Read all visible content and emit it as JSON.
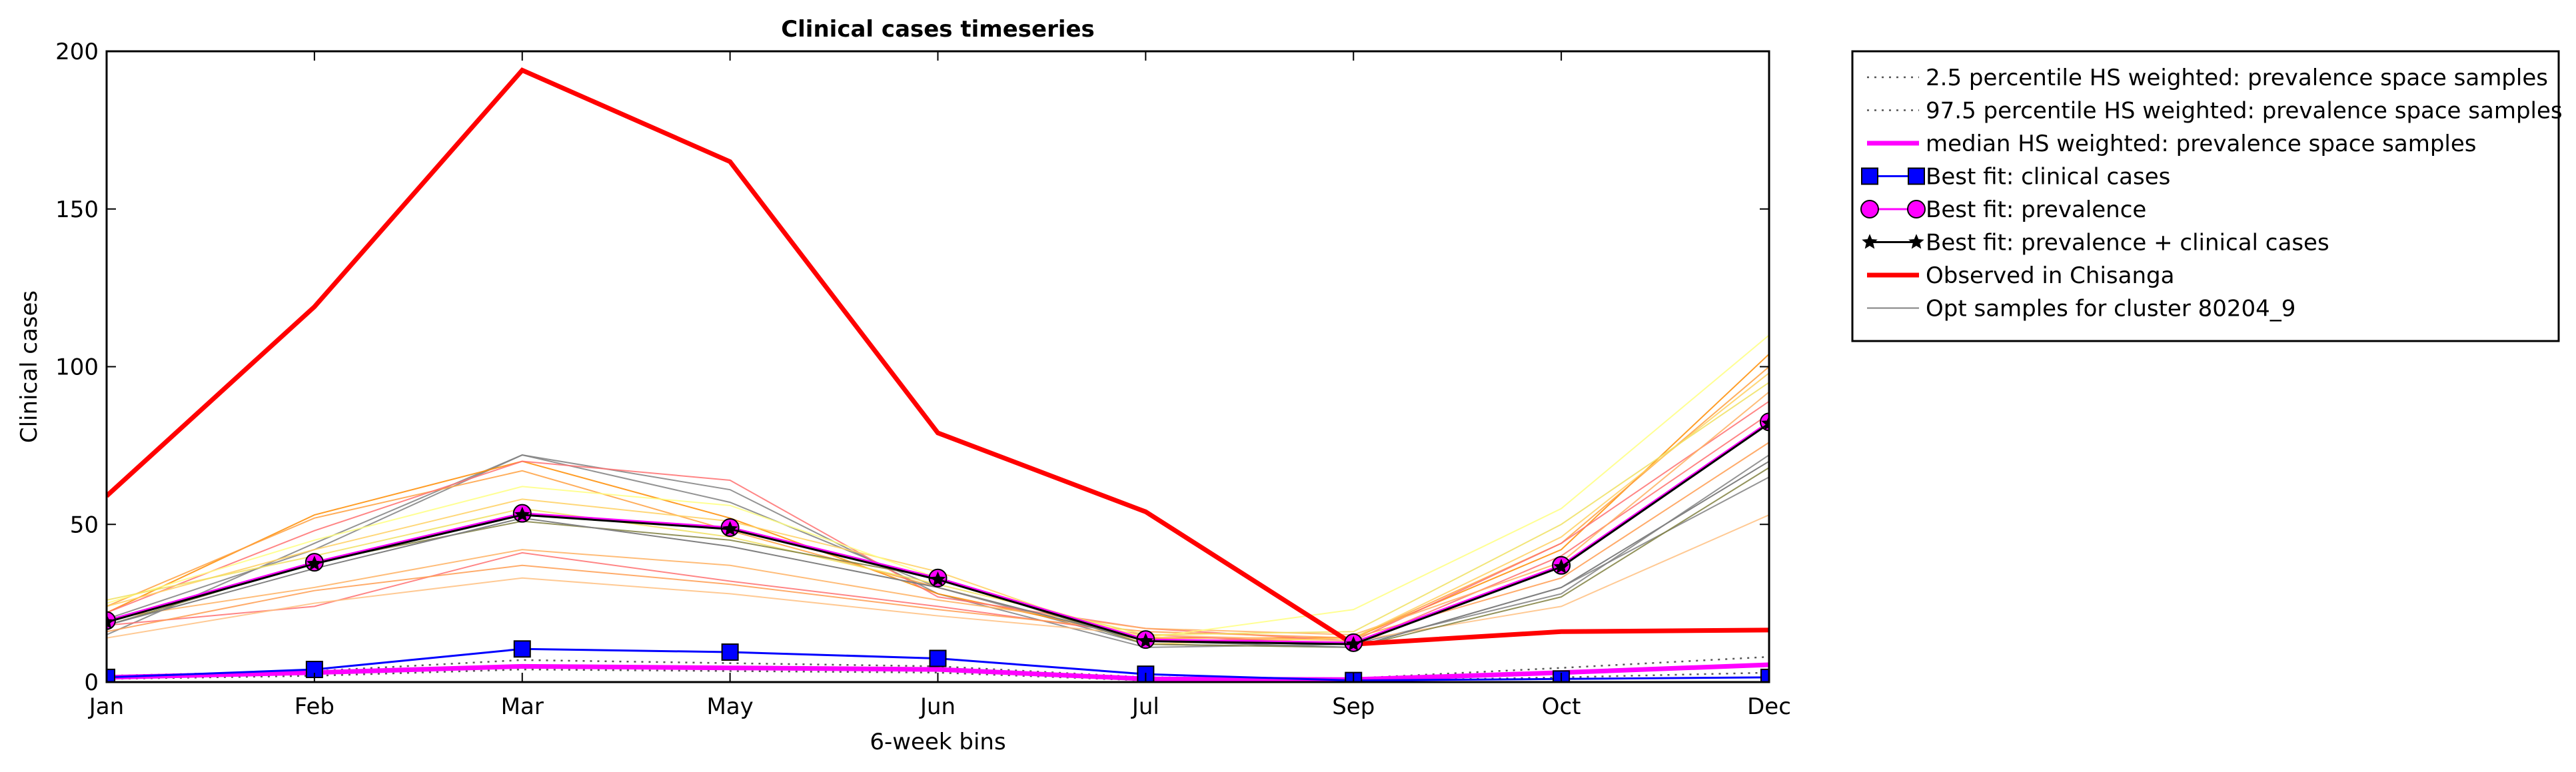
{
  "chart_data": {
    "type": "line",
    "title": "Clinical cases timeseries",
    "xlabel": "6-week bins",
    "ylabel": "Clinical cases",
    "categories": [
      "Jan",
      "Feb",
      "Mar",
      "May",
      "Jun",
      "Jul",
      "Sep",
      "Oct",
      "Dec"
    ],
    "ylim": [
      0,
      200
    ],
    "yticks": [
      0,
      50,
      100,
      150,
      200
    ],
    "grid": false,
    "legend_position": "outside-top-right",
    "series": [
      {
        "name": "2.5 percentile HS weighted: prevalence space samples",
        "values": [
          1,
          2,
          4,
          3.5,
          3,
          0.5,
          0.3,
          1.5,
          3
        ],
        "color": "#555555",
        "style": "dotted"
      },
      {
        "name": "97.5 percentile HS weighted: prevalence space samples",
        "values": [
          2,
          3.5,
          7,
          6,
          5,
          1.5,
          1.2,
          4.5,
          8
        ],
        "color": "#555555",
        "style": "dotted"
      },
      {
        "name": "median HS weighted: prevalence space samples",
        "values": [
          1.5,
          3,
          5,
          4.5,
          4,
          1,
          0.8,
          3,
          5.5
        ],
        "color": "#ff00ff",
        "style": "solid-thick"
      },
      {
        "name": "Best fit: clinical cases",
        "values": [
          1.5,
          4,
          10.5,
          9.5,
          7.5,
          2.5,
          0.5,
          1,
          1.5
        ],
        "color": "#0000ff",
        "marker": "square"
      },
      {
        "name": "Best fit: prevalence",
        "values": [
          19.5,
          38,
          53.5,
          49,
          33,
          13.5,
          12.5,
          37,
          82.5
        ],
        "color": "#ff00ff",
        "marker": "circle"
      },
      {
        "name": "Best fit: prevalence + clinical cases",
        "values": [
          19,
          37.5,
          53,
          48.5,
          32.5,
          13,
          12,
          36.5,
          82
        ],
        "color": "#000000",
        "marker": "star"
      },
      {
        "name": "Observed in Chisanga",
        "values": [
          59,
          119,
          194,
          165,
          79,
          54,
          12,
          16,
          16.5
        ],
        "color": "#ff0000",
        "style": "solid-thick"
      },
      {
        "name": "Opt samples for cluster 80204_9",
        "values": [
          18,
          36,
          52,
          43,
          30,
          13,
          11,
          30,
          70
        ],
        "color": "#808080",
        "style": "thin"
      }
    ],
    "sample_lines": [
      {
        "values": [
          20,
          42,
          72,
          57,
          30,
          12,
          11,
          30,
          65
        ],
        "color": "#808080"
      },
      {
        "values": [
          15,
          44,
          72,
          61,
          28,
          11,
          12,
          28,
          72
        ],
        "color": "#808080"
      },
      {
        "values": [
          22,
          53,
          70,
          52,
          28,
          14,
          14,
          42,
          104
        ],
        "color": "#ff8c00"
      },
      {
        "values": [
          24,
          52,
          67,
          48,
          30,
          13,
          14,
          44,
          100
        ],
        "color": "#ffa040"
      },
      {
        "values": [
          22,
          48,
          70,
          64,
          27,
          17,
          13,
          44,
          89
        ],
        "color": "#ff7070"
      },
      {
        "values": [
          18,
          24,
          41,
          32,
          24,
          15,
          12,
          40,
          85
        ],
        "color": "#ff7070"
      },
      {
        "values": [
          20,
          30,
          42,
          37,
          26,
          17,
          15,
          38,
          92
        ],
        "color": "#ffb060"
      },
      {
        "values": [
          16,
          29,
          37,
          31,
          23,
          16,
          14,
          33,
          76
        ],
        "color": "#ff9c50"
      },
      {
        "values": [
          14,
          25,
          33,
          28,
          21,
          15,
          13,
          24,
          53
        ],
        "color": "#ffc080"
      },
      {
        "values": [
          24,
          42,
          58,
          51,
          35,
          12,
          14,
          46,
          98
        ],
        "color": "#ffd060"
      },
      {
        "values": [
          25,
          45,
          62,
          56,
          33,
          14,
          23,
          55,
          110
        ],
        "color": "#ffff80"
      },
      {
        "values": [
          26,
          40,
          55,
          46,
          31,
          15,
          16,
          50,
          95
        ],
        "color": "#f0e060"
      },
      {
        "values": [
          18,
          38,
          51,
          45,
          33,
          12,
          11,
          27,
          68
        ],
        "color": "#808040"
      }
    ]
  }
}
